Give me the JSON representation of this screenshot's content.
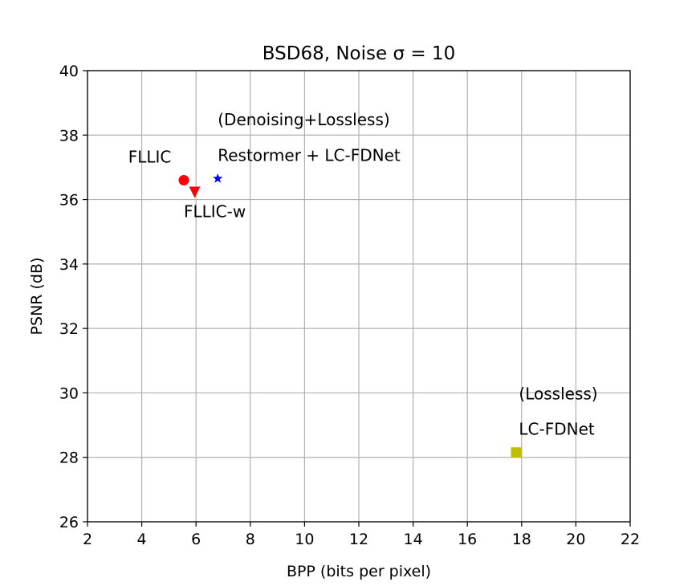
{
  "chart_data": {
    "type": "scatter",
    "title": "BSD68, Noise σ = 10",
    "xlabel": "BPP (bits per pixel)",
    "ylabel": "PSNR (dB)",
    "xlim": [
      2,
      22
    ],
    "ylim": [
      26,
      40
    ],
    "xticks": [
      2,
      4,
      6,
      8,
      10,
      12,
      14,
      16,
      18,
      20,
      22
    ],
    "yticks": [
      26,
      28,
      30,
      32,
      34,
      36,
      38,
      40
    ],
    "grid": true,
    "points": [
      {
        "name": "FLLIC",
        "x": 5.55,
        "y": 36.6,
        "marker": "circle",
        "color": "#ff0000"
      },
      {
        "name": "FLLIC-w",
        "x": 5.95,
        "y": 36.25,
        "marker": "triangle-down",
        "color": "#ff0000"
      },
      {
        "name": "Restormer + LC-FDNet",
        "x": 6.8,
        "y": 36.65,
        "marker": "star",
        "color": "#0000ff"
      },
      {
        "name": "LC-FDNet",
        "x": 17.8,
        "y": 28.15,
        "marker": "square",
        "color": "#bfbf00"
      }
    ],
    "annotations": [
      {
        "text": "(Denoising+Lossless)",
        "x": 6.8,
        "y": 38.3
      },
      {
        "text": "Restormer + LC-FDNet",
        "x": 6.8,
        "y": 37.2
      },
      {
        "text": "FLLIC",
        "x": 3.5,
        "y": 37.15
      },
      {
        "text": "FLLIC-w",
        "x": 5.55,
        "y": 35.45
      },
      {
        "text": "(Lossless)",
        "x": 17.9,
        "y": 29.8
      },
      {
        "text": "LC-FDNet",
        "x": 17.9,
        "y": 28.7
      }
    ]
  }
}
